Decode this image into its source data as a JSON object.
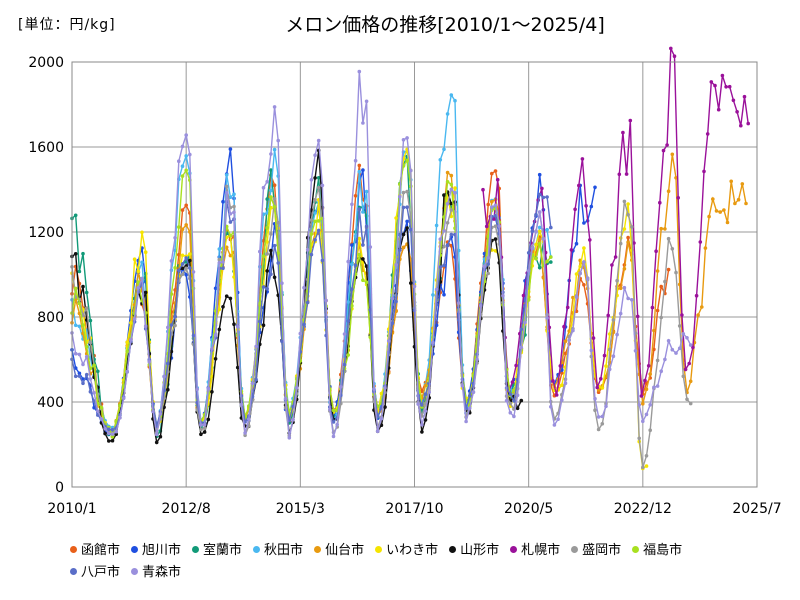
{
  "unit_label": "[単位：円/kg]",
  "title": "メロン価格の推移[2010/1～2025/4]",
  "chart_data": {
    "type": "line",
    "title": "メロン価格の推移[2010/1～2025/4]",
    "ylabel": "[単位：円/kg]",
    "xlabel": "",
    "ylim": [
      0,
      2000
    ],
    "y_ticks": [
      "0",
      "400",
      "800",
      "1200",
      "1600",
      "2000"
    ],
    "x_ticks": [
      "2010/1",
      "2012/8",
      "2015/3",
      "2017/10",
      "2020/5",
      "2022/12",
      "2025/7"
    ],
    "grid": true,
    "legend_position": "bottom",
    "x_unit": "year",
    "season_peaks": [
      {
        "year": 2010,
        "peak_month": 1.0
      },
      {
        "year": 2011,
        "peak_month": 0.75
      }
    ],
    "series": [
      {
        "name": "函館市",
        "color": "#e8601a",
        "peaks": [
          [
            2010.0,
            1000
          ],
          [
            2011.6,
            930
          ],
          [
            2012.6,
            1290
          ],
          [
            2013.6,
            1230
          ],
          [
            2014.6,
            1400
          ],
          [
            2015.6,
            1350
          ],
          [
            2016.6,
            1460
          ],
          [
            2017.6,
            1100
          ],
          [
            2018.6,
            1100
          ],
          [
            2019.6,
            1430
          ],
          [
            2020.6,
            1180
          ],
          [
            2021.6,
            920
          ],
          [
            2022.6,
            1080
          ],
          [
            2023.6,
            1050
          ],
          [
            2024.6,
            900
          ]
        ],
        "troughs": [
          [
            2010.9,
            260
          ],
          [
            2011.9,
            290
          ],
          [
            2012.9,
            300
          ],
          [
            2013.9,
            310
          ],
          [
            2014.9,
            290
          ],
          [
            2015.9,
            330
          ],
          [
            2016.9,
            350
          ],
          [
            2017.9,
            420
          ],
          [
            2018.9,
            370
          ],
          [
            2019.9,
            400
          ],
          [
            2020.9,
            420
          ],
          [
            2021.9,
            440
          ],
          [
            2022.9,
            470
          ],
          [
            2023.9,
            480
          ]
        ],
        "end": 2023.5
      },
      {
        "name": "旭川市",
        "color": "#1f4fe0",
        "peaks": [
          [
            2010.0,
            600
          ],
          [
            2011.6,
            1050
          ],
          [
            2012.6,
            1030
          ],
          [
            2013.6,
            1500
          ],
          [
            2014.6,
            1150
          ],
          [
            2015.6,
            1370
          ],
          [
            2016.6,
            1460
          ],
          [
            2017.6,
            1230
          ],
          [
            2018.6,
            1100
          ],
          [
            2019.6,
            1380
          ],
          [
            2020.6,
            1350
          ],
          [
            2021.6,
            1350
          ]
        ],
        "troughs": [
          [
            2010.9,
            240
          ],
          [
            2011.9,
            300
          ],
          [
            2012.9,
            280
          ],
          [
            2013.9,
            300
          ],
          [
            2014.9,
            300
          ],
          [
            2015.9,
            310
          ],
          [
            2016.9,
            330
          ],
          [
            2017.9,
            380
          ],
          [
            2018.9,
            360
          ],
          [
            2019.9,
            420
          ],
          [
            2020.9,
            440
          ]
        ],
        "end": 2021.9
      },
      {
        "name": "室蘭市",
        "color": "#119a78",
        "peaks": [
          [
            2010.0,
            1200
          ],
          [
            2011.6,
            1040
          ],
          [
            2012.6,
            1100
          ],
          [
            2013.6,
            1200
          ],
          [
            2014.6,
            1450
          ],
          [
            2015.6,
            1350
          ],
          [
            2016.6,
            1300
          ],
          [
            2017.6,
            1480
          ],
          [
            2018.6,
            1420
          ],
          [
            2019.6,
            1360
          ],
          [
            2020.6,
            1120
          ]
        ],
        "troughs": [
          [
            2010.9,
            230
          ],
          [
            2011.9,
            250
          ],
          [
            2012.9,
            270
          ],
          [
            2013.9,
            300
          ],
          [
            2014.9,
            310
          ],
          [
            2015.9,
            300
          ],
          [
            2016.9,
            340
          ],
          [
            2017.9,
            380
          ],
          [
            2018.9,
            380
          ],
          [
            2019.9,
            420
          ]
        ],
        "end": 2020.9
      },
      {
        "name": "秋田市",
        "color": "#4ab8f0",
        "peaks": [
          [
            2010.0,
            850
          ],
          [
            2011.6,
            970
          ],
          [
            2012.6,
            1590
          ],
          [
            2013.6,
            1400
          ],
          [
            2014.6,
            1580
          ],
          [
            2015.6,
            1330
          ],
          [
            2016.6,
            1420
          ],
          [
            2017.6,
            1500
          ],
          [
            2018.6,
            1910
          ],
          [
            2019.6,
            1380
          ],
          [
            2020.6,
            1180
          ]
        ],
        "troughs": [
          [
            2010.9,
            270
          ],
          [
            2011.9,
            270
          ],
          [
            2012.9,
            290
          ],
          [
            2013.9,
            310
          ],
          [
            2014.9,
            330
          ],
          [
            2015.9,
            320
          ],
          [
            2016.9,
            350
          ],
          [
            2017.9,
            380
          ],
          [
            2018.9,
            340
          ],
          [
            2019.9,
            430
          ]
        ],
        "end": 2020.9
      },
      {
        "name": "仙台市",
        "color": "#e89a10",
        "peaks": [
          [
            2010.0,
            850
          ],
          [
            2011.6,
            1000
          ],
          [
            2012.6,
            1200
          ],
          [
            2013.6,
            1150
          ],
          [
            2014.6,
            1300
          ],
          [
            2015.6,
            1240
          ],
          [
            2016.6,
            1100
          ],
          [
            2017.6,
            1100
          ],
          [
            2018.6,
            1420
          ],
          [
            2019.6,
            1300
          ],
          [
            2020.6,
            1170
          ],
          [
            2021.6,
            1000
          ],
          [
            2022.6,
            1060
          ],
          [
            2023.6,
            1440
          ],
          [
            2024.6,
            1340
          ]
        ],
        "troughs": [
          [
            2010.9,
            260
          ],
          [
            2011.9,
            280
          ],
          [
            2012.9,
            290
          ],
          [
            2013.9,
            310
          ],
          [
            2014.9,
            300
          ],
          [
            2015.9,
            330
          ],
          [
            2016.9,
            340
          ],
          [
            2017.9,
            390
          ],
          [
            2018.9,
            370
          ],
          [
            2019.9,
            420
          ],
          [
            2020.9,
            460
          ],
          [
            2021.9,
            450
          ],
          [
            2022.9,
            420
          ],
          [
            2023.9,
            490
          ]
        ],
        "end": 2025.3
      },
      {
        "name": "いわき市",
        "color": "#f5e400",
        "peaks": [
          [
            2010.0,
            950
          ],
          [
            2011.6,
            1140
          ],
          [
            2012.6,
            1100
          ],
          [
            2013.6,
            1130
          ],
          [
            2014.6,
            1350
          ],
          [
            2015.6,
            1250
          ],
          [
            2016.6,
            1150
          ],
          [
            2017.6,
            1560
          ],
          [
            2018.6,
            1400
          ],
          [
            2019.6,
            1200
          ],
          [
            2020.6,
            1200
          ],
          [
            2021.6,
            1050
          ],
          [
            2022.6,
            1250
          ]
        ],
        "troughs": [
          [
            2010.9,
            250
          ],
          [
            2011.9,
            280
          ],
          [
            2012.9,
            290
          ],
          [
            2013.9,
            320
          ],
          [
            2014.9,
            330
          ],
          [
            2015.9,
            320
          ],
          [
            2016.9,
            340
          ],
          [
            2017.9,
            370
          ],
          [
            2018.9,
            380
          ],
          [
            2019.9,
            410
          ],
          [
            2020.9,
            430
          ],
          [
            2021.9,
            460
          ],
          [
            2022.9,
            90
          ]
        ],
        "end": 2023.0
      },
      {
        "name": "山形市",
        "color": "#111111",
        "peaks": [
          [
            2010.0,
            1030
          ],
          [
            2011.6,
            950
          ],
          [
            2012.6,
            1080
          ],
          [
            2013.6,
            900
          ],
          [
            2014.6,
            1080
          ],
          [
            2015.6,
            1470
          ],
          [
            2016.6,
            1060
          ],
          [
            2017.6,
            1160
          ],
          [
            2018.6,
            1440
          ],
          [
            2019.6,
            1200
          ]
        ],
        "troughs": [
          [
            2010.9,
            200
          ],
          [
            2011.9,
            220
          ],
          [
            2012.9,
            240
          ],
          [
            2013.9,
            270
          ],
          [
            2014.9,
            260
          ],
          [
            2015.9,
            290
          ],
          [
            2016.9,
            270
          ],
          [
            2017.9,
            280
          ],
          [
            2018.9,
            330
          ],
          [
            2019.9,
            400
          ]
        ],
        "end": 2020.2
      },
      {
        "name": "札幌市",
        "color": "#9a119a",
        "peaks": [
          [
            2019.6,
            1350
          ],
          [
            2020.6,
            1430
          ],
          [
            2021.6,
            1420
          ],
          [
            2022.6,
            1650
          ],
          [
            2023.6,
            1900
          ],
          [
            2024.6,
            1870
          ]
        ],
        "troughs": [
          [
            2019.9,
            460
          ],
          [
            2020.9,
            450
          ],
          [
            2021.9,
            470
          ],
          [
            2022.9,
            430
          ],
          [
            2023.9,
            540
          ]
        ],
        "start": 2019.3,
        "end": 2025.3
      },
      {
        "name": "盛岡市",
        "color": "#9a9a9a",
        "peaks": [
          [
            2010.0,
            1000
          ],
          [
            2011.6,
            900
          ],
          [
            2012.6,
            1050
          ],
          [
            2013.6,
            1350
          ],
          [
            2014.6,
            1350
          ],
          [
            2015.6,
            1400
          ],
          [
            2016.6,
            1250
          ],
          [
            2017.6,
            1320
          ],
          [
            2018.6,
            1350
          ],
          [
            2019.6,
            1250
          ],
          [
            2020.6,
            1250
          ],
          [
            2021.6,
            1000
          ],
          [
            2022.6,
            1300
          ],
          [
            2023.6,
            1180
          ]
        ],
        "troughs": [
          [
            2010.9,
            240
          ],
          [
            2011.9,
            260
          ],
          [
            2012.9,
            250
          ],
          [
            2013.9,
            230
          ],
          [
            2014.9,
            230
          ],
          [
            2015.9,
            260
          ],
          [
            2016.9,
            280
          ],
          [
            2017.9,
            320
          ],
          [
            2018.9,
            320
          ],
          [
            2019.9,
            360
          ],
          [
            2020.9,
            330
          ],
          [
            2021.9,
            270
          ],
          [
            2022.9,
            100
          ],
          [
            2023.9,
            400
          ]
        ],
        "end": 2024.0
      },
      {
        "name": "福島市",
        "color": "#a8e020",
        "peaks": [
          [
            2010.0,
            900
          ],
          [
            2011.6,
            950
          ],
          [
            2012.6,
            1450
          ],
          [
            2013.6,
            1250
          ],
          [
            2014.6,
            1300
          ],
          [
            2015.6,
            1300
          ],
          [
            2016.6,
            1050
          ],
          [
            2017.6,
            1480
          ],
          [
            2018.6,
            1380
          ],
          [
            2019.6,
            1260
          ],
          [
            2020.6,
            1150
          ]
        ],
        "troughs": [
          [
            2010.9,
            260
          ],
          [
            2011.9,
            290
          ],
          [
            2012.9,
            300
          ],
          [
            2013.9,
            320
          ],
          [
            2014.9,
            330
          ],
          [
            2015.9,
            330
          ],
          [
            2016.9,
            360
          ],
          [
            2017.9,
            350
          ],
          [
            2018.9,
            370
          ],
          [
            2019.9,
            420
          ]
        ],
        "end": 2020.9
      },
      {
        "name": "八戸市",
        "color": "#5a6ec8",
        "peaks": [
          [
            2010.0,
            580
          ],
          [
            2011.6,
            880
          ],
          [
            2012.6,
            1100
          ],
          [
            2013.6,
            1280
          ],
          [
            2014.6,
            1130
          ],
          [
            2015.6,
            1200
          ],
          [
            2016.6,
            1250
          ],
          [
            2017.6,
            1250
          ],
          [
            2018.6,
            1230
          ],
          [
            2019.6,
            1300
          ],
          [
            2020.6,
            1330
          ]
        ],
        "troughs": [
          [
            2010.9,
            260
          ],
          [
            2011.9,
            290
          ],
          [
            2012.9,
            280
          ],
          [
            2013.9,
            290
          ],
          [
            2014.9,
            300
          ],
          [
            2015.9,
            310
          ],
          [
            2016.9,
            330
          ],
          [
            2017.9,
            370
          ],
          [
            2018.9,
            360
          ],
          [
            2019.9,
            400
          ]
        ],
        "end": 2020.9
      },
      {
        "name": "青森市",
        "color": "#9a90dd",
        "peaks": [
          [
            2010.0,
            700
          ],
          [
            2011.6,
            900
          ],
          [
            2012.6,
            1690
          ],
          [
            2013.6,
            1320
          ],
          [
            2014.6,
            1780
          ],
          [
            2015.6,
            1620
          ],
          [
            2016.6,
            1880
          ],
          [
            2017.6,
            1560
          ],
          [
            2018.6,
            1450
          ],
          [
            2019.6,
            1350
          ],
          [
            2020.6,
            1250
          ],
          [
            2021.6,
            1000
          ],
          [
            2022.6,
            900
          ],
          [
            2023.6,
            680
          ]
        ],
        "troughs": [
          [
            2010.9,
            240
          ],
          [
            2011.9,
            250
          ],
          [
            2012.9,
            270
          ],
          [
            2013.9,
            240
          ],
          [
            2014.9,
            220
          ],
          [
            2015.9,
            240
          ],
          [
            2016.9,
            260
          ],
          [
            2017.9,
            280
          ],
          [
            2018.9,
            300
          ],
          [
            2019.9,
            320
          ],
          [
            2020.9,
            300
          ],
          [
            2021.9,
            330
          ],
          [
            2022.9,
            340
          ]
        ],
        "end": 2024.0
      }
    ]
  }
}
